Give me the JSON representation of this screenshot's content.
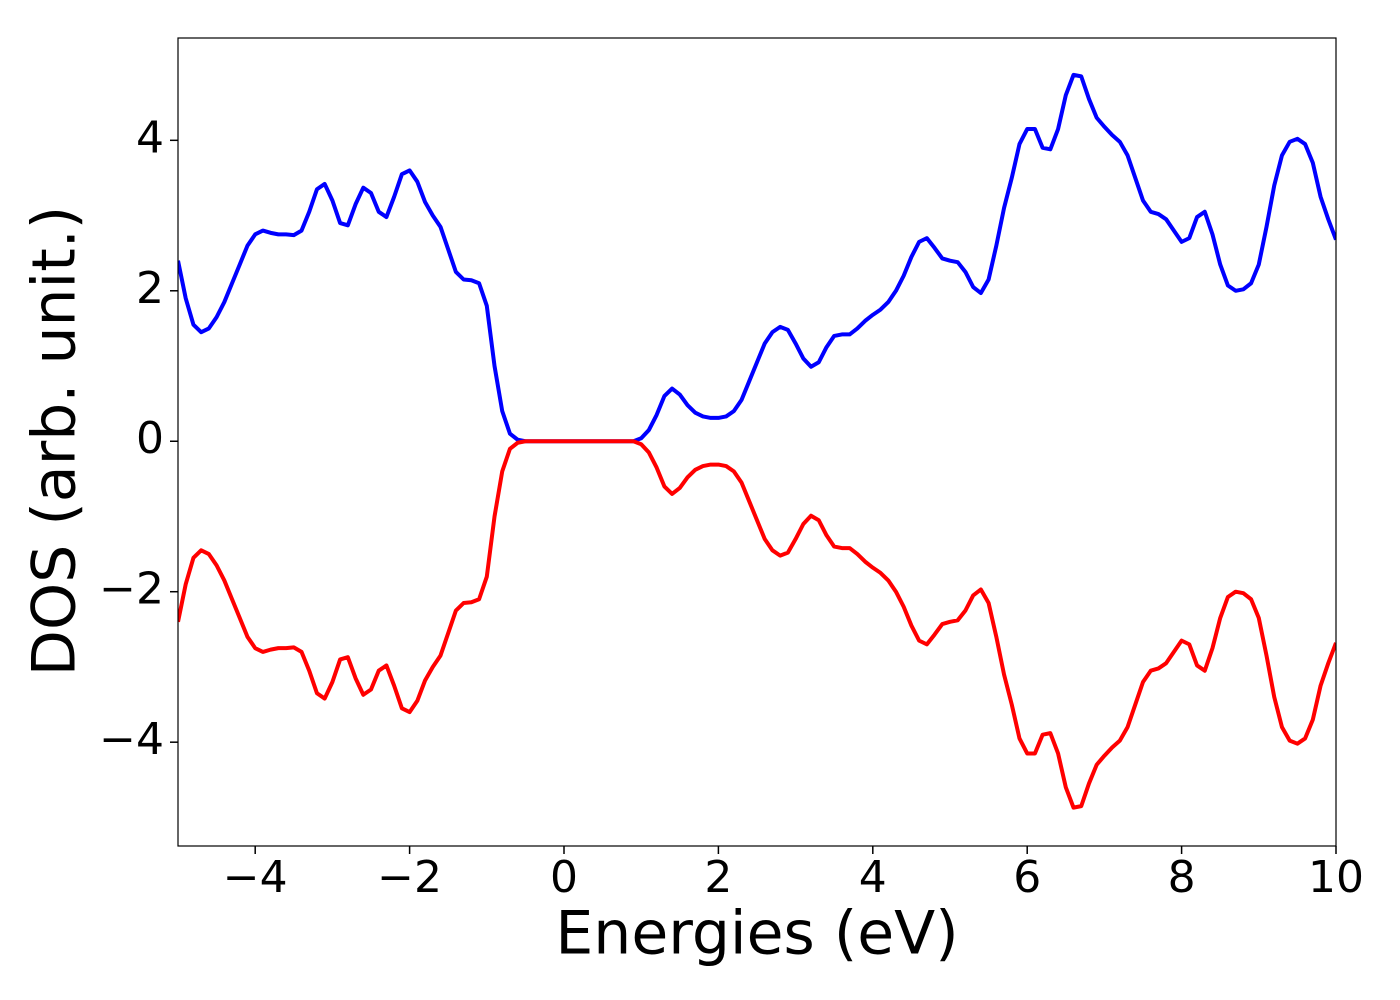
{
  "chart_data": {
    "type": "line",
    "xlabel": "Energies (eV)",
    "ylabel": "DOS (arb. unit.)",
    "xlim": [
      -5,
      10
    ],
    "ylim": [
      -5.38,
      5.36
    ],
    "xticks": [
      {
        "value": -4,
        "label": "−4"
      },
      {
        "value": -2,
        "label": "−2"
      },
      0,
      2,
      4,
      6,
      8,
      10
    ],
    "yticks": [
      {
        "value": -4,
        "label": "−4"
      },
      {
        "value": -2,
        "label": "−2"
      },
      0,
      2,
      4
    ],
    "grid": false,
    "x": [
      -5,
      -4.9,
      -4.8,
      -4.7,
      -4.6,
      -4.5,
      -4.4,
      -4.3,
      -4.2,
      -4.1,
      -4,
      -3.9,
      -3.8,
      -3.7,
      -3.6,
      -3.5,
      -3.4,
      -3.3,
      -3.2,
      -3.1,
      -3,
      -2.9,
      -2.8,
      -2.7,
      -2.6,
      -2.5,
      -2.4,
      -2.3,
      -2.2,
      -2.1,
      -2,
      -1.9,
      -1.8,
      -1.7,
      -1.6,
      -1.5,
      -1.4,
      -1.3,
      -1.2,
      -1.1,
      -1,
      -0.9,
      -0.8,
      -0.7,
      -0.6,
      -0.5,
      -0.4,
      -0.3,
      -0.2,
      -0.1,
      0,
      0.1,
      0.2,
      0.3,
      0.4,
      0.5,
      0.6,
      0.7,
      0.8,
      0.9,
      1,
      1.1,
      1.2,
      1.3,
      1.4,
      1.5,
      1.6,
      1.7,
      1.8,
      1.9,
      2,
      2.1,
      2.2,
      2.3,
      2.4,
      2.5,
      2.6,
      2.7,
      2.8,
      2.9,
      3,
      3.1,
      3.2,
      3.3,
      3.4,
      3.5,
      3.6,
      3.7,
      3.8,
      3.9,
      4,
      4.1,
      4.2,
      4.3,
      4.4,
      4.5,
      4.6,
      4.7,
      4.8,
      4.9,
      5,
      5.1,
      5.2,
      5.3,
      5.4,
      5.5,
      5.6,
      5.7,
      5.8,
      5.9,
      6,
      6.1,
      6.2,
      6.3,
      6.4,
      6.5,
      6.6,
      6.7,
      6.8,
      6.9,
      7,
      7.1,
      7.2,
      7.3,
      7.4,
      7.5,
      7.6,
      7.7,
      7.8,
      7.9,
      8,
      8.1,
      8.2,
      8.3,
      8.4,
      8.5,
      8.6,
      8.7,
      8.8,
      8.9,
      9,
      9.1,
      9.2,
      9.3,
      9.4,
      9.5,
      9.6,
      9.7,
      9.8,
      9.9,
      10
    ],
    "series": [
      {
        "color": "#0000ff",
        "values": [
          2.4,
          1.9,
          1.55,
          1.45,
          1.5,
          1.65,
          1.85,
          2.1,
          2.35,
          2.6,
          2.75,
          2.8,
          2.77,
          2.75,
          2.75,
          2.74,
          2.8,
          3.05,
          3.35,
          3.42,
          3.2,
          2.9,
          2.87,
          3.15,
          3.37,
          3.3,
          3.05,
          2.98,
          3.25,
          3.55,
          3.6,
          3.45,
          3.18,
          3.0,
          2.85,
          2.55,
          2.25,
          2.15,
          2.14,
          2.1,
          1.8,
          1.0,
          0.4,
          0.1,
          0.02,
          0,
          0,
          0,
          0,
          0,
          0,
          0,
          0,
          0,
          0,
          0,
          0,
          0,
          0,
          0,
          0.04,
          0.15,
          0.35,
          0.6,
          0.7,
          0.62,
          0.48,
          0.38,
          0.33,
          0.31,
          0.31,
          0.33,
          0.4,
          0.55,
          0.8,
          1.05,
          1.3,
          1.45,
          1.52,
          1.48,
          1.3,
          1.1,
          0.99,
          1.05,
          1.25,
          1.4,
          1.42,
          1.42,
          1.5,
          1.6,
          1.68,
          1.75,
          1.85,
          2.0,
          2.2,
          2.45,
          2.65,
          2.7,
          2.57,
          2.43,
          2.4,
          2.38,
          2.25,
          2.05,
          1.97,
          2.15,
          2.6,
          3.1,
          3.5,
          3.95,
          4.15,
          4.15,
          3.9,
          3.88,
          4.15,
          4.6,
          4.87,
          4.85,
          4.55,
          4.3,
          4.18,
          4.07,
          3.98,
          3.8,
          3.5,
          3.2,
          3.05,
          3.02,
          2.95,
          2.8,
          2.65,
          2.7,
          2.98,
          3.05,
          2.75,
          2.35,
          2.07,
          2.0,
          2.02,
          2.1,
          2.35,
          2.85,
          3.4,
          3.8,
          3.98,
          4.02,
          3.95,
          3.7,
          3.25,
          2.95,
          2.68
        ]
      },
      {
        "color": "#ff0000",
        "values": [
          -2.4,
          -1.9,
          -1.55,
          -1.45,
          -1.5,
          -1.65,
          -1.85,
          -2.1,
          -2.35,
          -2.6,
          -2.75,
          -2.8,
          -2.77,
          -2.75,
          -2.75,
          -2.74,
          -2.8,
          -3.05,
          -3.35,
          -3.42,
          -3.2,
          -2.9,
          -2.87,
          -3.15,
          -3.37,
          -3.3,
          -3.05,
          -2.98,
          -3.25,
          -3.55,
          -3.6,
          -3.45,
          -3.18,
          -3.0,
          -2.85,
          -2.55,
          -2.25,
          -2.15,
          -2.14,
          -2.1,
          -1.8,
          -1.0,
          -0.4,
          -0.1,
          -0.02,
          0,
          0,
          0,
          0,
          0,
          0,
          0,
          0,
          0,
          0,
          0,
          0,
          0,
          0,
          0,
          -0.04,
          -0.15,
          -0.35,
          -0.6,
          -0.7,
          -0.62,
          -0.48,
          -0.38,
          -0.33,
          -0.31,
          -0.31,
          -0.33,
          -0.4,
          -0.55,
          -0.8,
          -1.05,
          -1.3,
          -1.45,
          -1.52,
          -1.48,
          -1.3,
          -1.1,
          -0.99,
          -1.05,
          -1.25,
          -1.4,
          -1.42,
          -1.42,
          -1.5,
          -1.6,
          -1.68,
          -1.75,
          -1.85,
          -2.0,
          -2.2,
          -2.45,
          -2.65,
          -2.7,
          -2.57,
          -2.43,
          -2.4,
          -2.38,
          -2.25,
          -2.05,
          -1.97,
          -2.15,
          -2.6,
          -3.1,
          -3.5,
          -3.95,
          -4.15,
          -4.15,
          -3.9,
          -3.88,
          -4.15,
          -4.6,
          -4.87,
          -4.85,
          -4.55,
          -4.3,
          -4.18,
          -4.07,
          -3.98,
          -3.8,
          -3.5,
          -3.2,
          -3.05,
          -3.02,
          -2.95,
          -2.8,
          -2.65,
          -2.7,
          -2.98,
          -3.05,
          -2.75,
          -2.35,
          -2.07,
          -2.0,
          -2.02,
          -2.1,
          -2.35,
          -2.85,
          -3.4,
          -3.8,
          -3.98,
          -4.02,
          -3.95,
          -3.7,
          -3.25,
          -2.95,
          -2.68
        ]
      }
    ]
  }
}
